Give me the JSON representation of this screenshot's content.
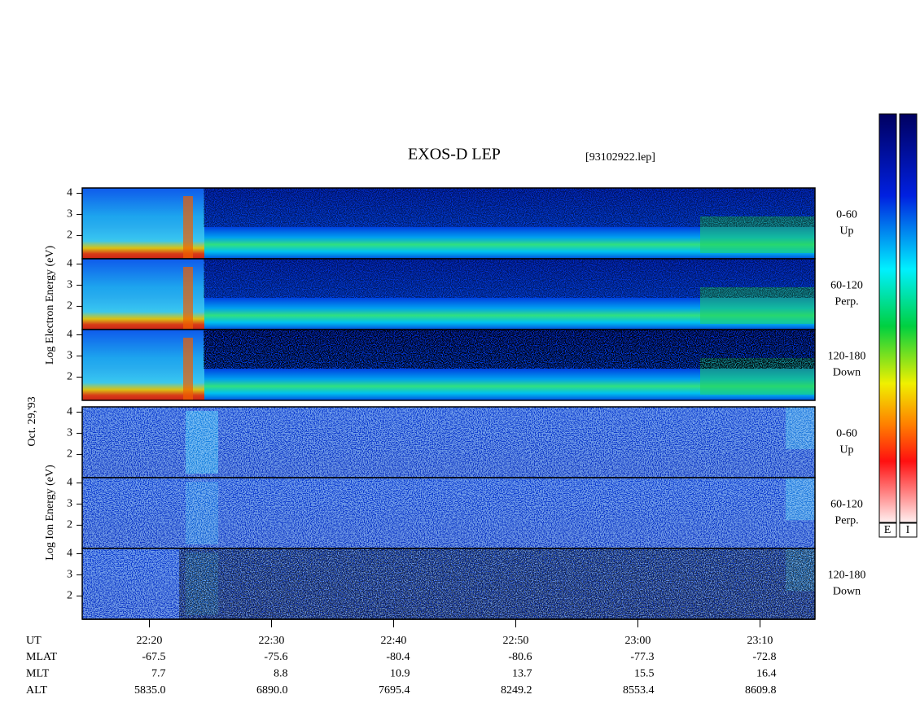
{
  "chart_data": {
    "type": "spectrogram",
    "title": "EXOS-D LEP",
    "subtitle": "[93102922.lep]",
    "date": "Oct. 29,'93",
    "electron_ylabel": "Log Electron Energy (eV)",
    "ion_ylabel": "Log Ion Energy (eV)",
    "panels": [
      {
        "group": "electron",
        "label": [
          "0-60",
          "Up"
        ]
      },
      {
        "group": "electron",
        "label": [
          "60-120",
          "Perp."
        ]
      },
      {
        "group": "electron",
        "label": [
          "120-180",
          "Down"
        ]
      },
      {
        "group": "ion",
        "label": [
          "0-60",
          "Up"
        ]
      },
      {
        "group": "ion",
        "label": [
          "60-120",
          "Perp."
        ]
      },
      {
        "group": "ion",
        "label": [
          "120-180",
          "Down"
        ]
      }
    ],
    "ylim": [
      0.9,
      4.25
    ],
    "yticks": [
      2,
      3,
      4
    ],
    "xlim": [
      1334.5,
      1394.5
    ],
    "xticks": [
      {
        "value": 1340,
        "label": "22:20"
      },
      {
        "value": 1350,
        "label": "22:30"
      },
      {
        "value": 1360,
        "label": "22:40"
      },
      {
        "value": 1370,
        "label": "22:50"
      },
      {
        "value": 1380,
        "label": "23:00"
      },
      {
        "value": 1390,
        "label": "23:10"
      }
    ],
    "xlabel": "UT",
    "rows": [
      {
        "label": "MLAT",
        "values": [
          "-67.5",
          "-75.6",
          "-80.4",
          "-80.6",
          "-77.3",
          "-72.8"
        ]
      },
      {
        "label": "MLT",
        "values": [
          "7.7",
          "8.8",
          "10.9",
          "13.7",
          "15.5",
          "16.4"
        ]
      },
      {
        "label": "ALT",
        "values": [
          "5835.0",
          "6890.0",
          "7695.4",
          "8249.2",
          "8553.4",
          "8609.8"
        ]
      }
    ],
    "colorbar_labels": [
      "E",
      "I"
    ]
  }
}
